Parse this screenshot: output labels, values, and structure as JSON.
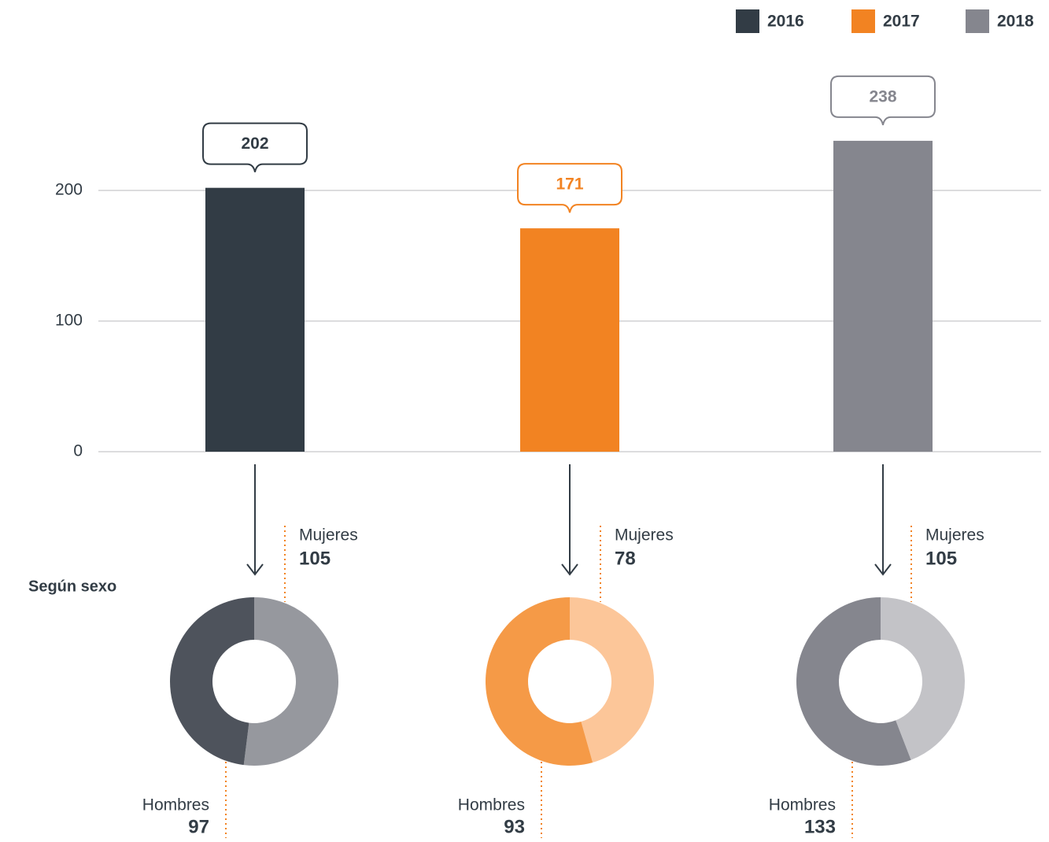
{
  "chart_data": [
    {
      "type": "bar",
      "categories": [
        "2016",
        "2017",
        "2018"
      ],
      "values": [
        202,
        171,
        238
      ],
      "colors": [
        "#323c45",
        "#f28322",
        "#85868e"
      ],
      "ylim": [
        0,
        250
      ],
      "yticks": [
        0,
        100,
        200
      ],
      "grid": true,
      "legend": "top-right"
    },
    {
      "type": "pie",
      "categories": [
        "Mujeres",
        "Hombres"
      ],
      "values": [
        105,
        97
      ],
      "colors": [
        "#96989e",
        "#4e535c"
      ]
    },
    {
      "type": "pie",
      "categories": [
        "Mujeres",
        "Hombres"
      ],
      "values": [
        78,
        93
      ],
      "colors": [
        "#fcc699",
        "#f59a47"
      ]
    },
    {
      "type": "pie",
      "categories": [
        "Mujeres",
        "Hombres"
      ],
      "values": [
        105,
        133
      ],
      "colors": [
        "#c3c3c7",
        "#85868e"
      ]
    }
  ],
  "section_label": "Según sexo"
}
